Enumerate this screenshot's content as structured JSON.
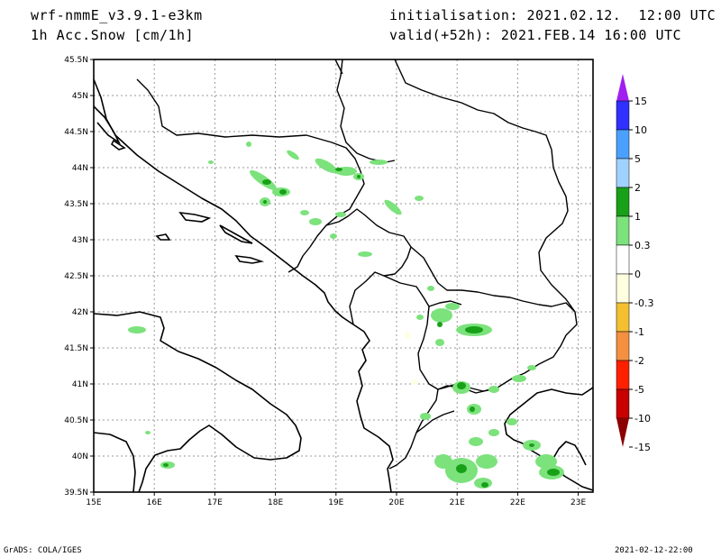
{
  "header": {
    "model": "wrf-nmmE_v3.9.1-e3km",
    "variable": "1h Acc.Snow [cm/1h]",
    "init": "initialisation: 2021.02.12.  12:00 UTC",
    "valid": "valid(+52h): 2021.FEB.14 16:00 UTC"
  },
  "map": {
    "lat_labels": [
      "45.5N",
      "45N",
      "44.5N",
      "44N",
      "43.5N",
      "43N",
      "42.5N",
      "42N",
      "41.5N",
      "41N",
      "40.5N",
      "40N",
      "39.5N"
    ],
    "lon_labels": [
      "15E",
      "16E",
      "17E",
      "18E",
      "19E",
      "20E",
      "21E",
      "22E",
      "23E"
    ]
  },
  "colorbar": {
    "labels": [
      "15",
      "10",
      "5",
      "2",
      "1",
      "0.3",
      "0",
      "-0.3",
      "-1",
      "-2",
      "-5",
      "-10",
      "-15"
    ],
    "colors": [
      "#a020f0",
      "#3030ff",
      "#4aa0ff",
      "#a0d2ff",
      "#18a018",
      "#7ce27c",
      "#ffffff",
      "#ffffe0",
      "#f4c030",
      "#f49040",
      "#ff2000",
      "#c80000",
      "#8b0000"
    ]
  },
  "footer": {
    "left": "GrADS: COLA/IGES",
    "right": "2021-02-12-22:00"
  }
}
